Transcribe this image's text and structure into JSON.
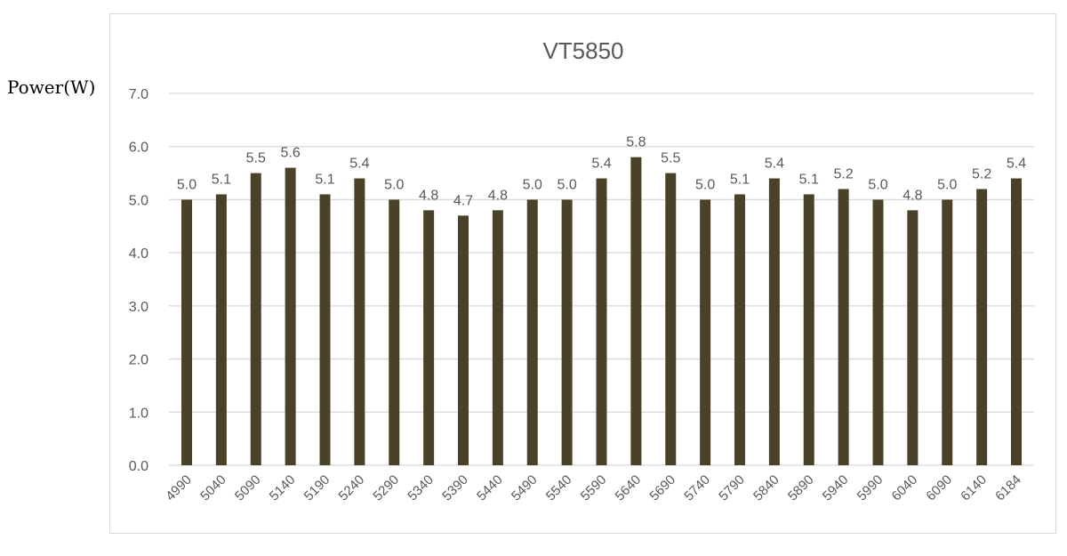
{
  "chart_data": {
    "type": "bar",
    "title": "VT5850",
    "ylabel": "Power(W)",
    "xlabel": "",
    "categories": [
      "4990",
      "5040",
      "5090",
      "5140",
      "5190",
      "5240",
      "5290",
      "5340",
      "5390",
      "5440",
      "5490",
      "5540",
      "5590",
      "5640",
      "5690",
      "5740",
      "5790",
      "5840",
      "5890",
      "5940",
      "5990",
      "6040",
      "6090",
      "6140",
      "6184"
    ],
    "values": [
      5.0,
      5.1,
      5.5,
      5.6,
      5.1,
      5.4,
      5.0,
      4.8,
      4.7,
      4.8,
      5.0,
      5.0,
      5.4,
      5.8,
      5.5,
      5.0,
      5.1,
      5.4,
      5.1,
      5.2,
      5.0,
      4.8,
      5.0,
      5.2,
      5.4
    ],
    "data_labels": [
      "5.0",
      "5.1",
      "5.5",
      "5.6",
      "5.1",
      "5.4",
      "5.0",
      "4.8",
      "4.7",
      "4.8",
      "5.0",
      "5.0",
      "5.4",
      "5.8",
      "5.5",
      "5.0",
      "5.1",
      "5.4",
      "5.1",
      "5.2",
      "5.0",
      "4.8",
      "5.0",
      "5.2",
      "5.4"
    ],
    "yticks": [
      "0.0",
      "1.0",
      "2.0",
      "3.0",
      "4.0",
      "5.0",
      "6.0",
      "7.0"
    ],
    "ylim": [
      0,
      7
    ],
    "grid": true,
    "legend": "none",
    "colors": {
      "bar": "#4a4228",
      "grid": "#d9d9d9",
      "text": "#595959"
    }
  }
}
